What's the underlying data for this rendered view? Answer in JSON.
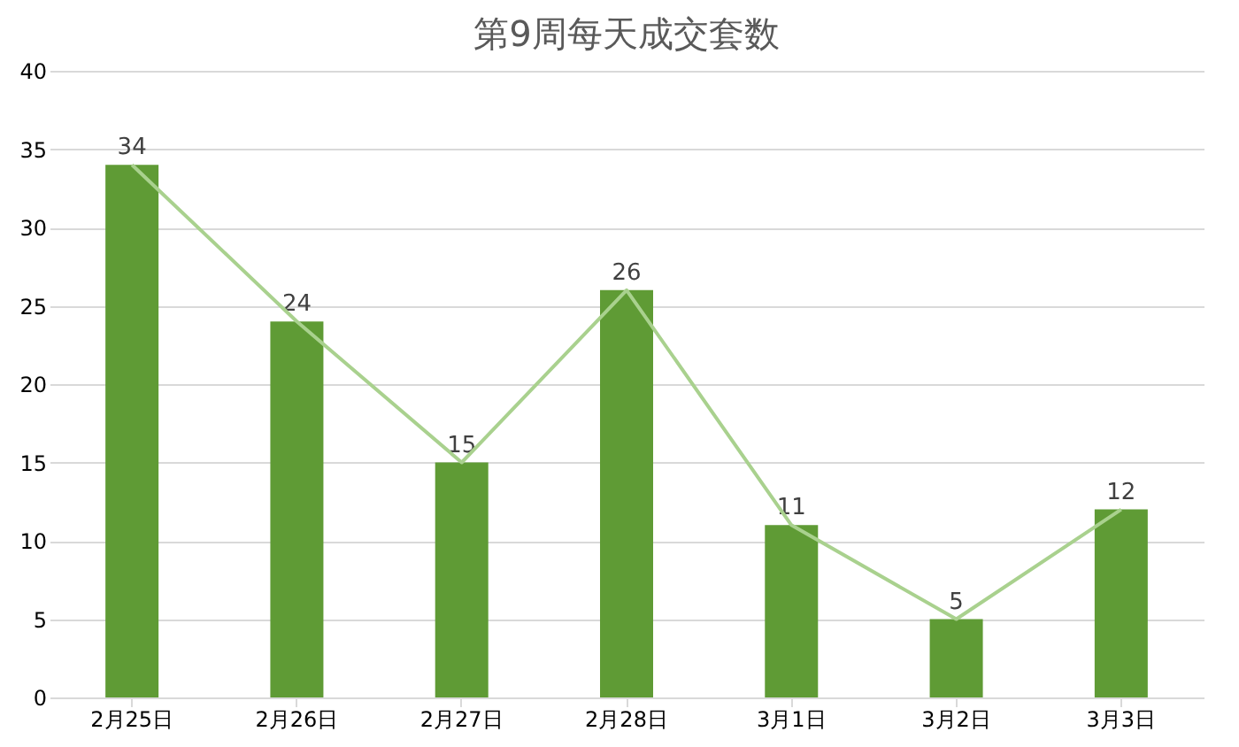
{
  "chart_data": {
    "type": "bar",
    "title": "第9周每天成交套数",
    "categories": [
      "2月25日",
      "2月26日",
      "2月27日",
      "2月28日",
      "3月1日",
      "3月2日",
      "3月3日"
    ],
    "series": [
      {
        "color": "#5f9b35",
        "values": [
          34,
          24,
          15,
          26,
          11,
          5,
          12
        ],
        "value_labels": [
          "34",
          "24",
          "15",
          "26",
          "11",
          "5",
          "12"
        ]
      },
      {
        "type": "line",
        "color": "#a9d18e",
        "values": [
          34,
          24,
          15,
          26,
          11,
          5,
          12
        ]
      }
    ],
    "ylim": [
      0,
      40
    ],
    "yticks": [
      0,
      5,
      10,
      15,
      20,
      25,
      30,
      35,
      40
    ],
    "grid": "y",
    "marker": "none"
  }
}
